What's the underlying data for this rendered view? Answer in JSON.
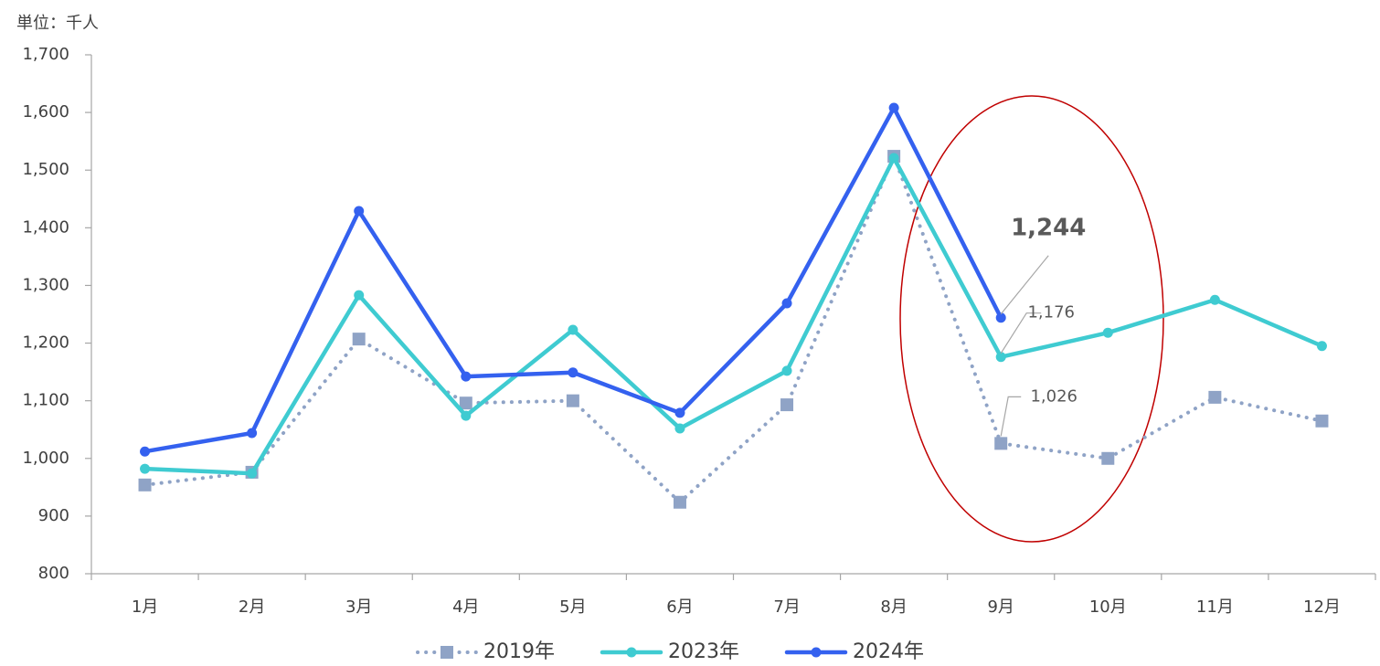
{
  "chart_data": {
    "type": "line",
    "y_axis_label": "単位：千人",
    "categories": [
      "1月",
      "2月",
      "3月",
      "4月",
      "5月",
      "6月",
      "7月",
      "8月",
      "9月",
      "10月",
      "11月",
      "12月"
    ],
    "series": [
      {
        "name": "2019年",
        "color": "#8fa3c6",
        "line_style": "dotted",
        "marker": "square",
        "values": [
          954,
          976,
          1207,
          1096,
          1100,
          924,
          1093,
          1524,
          1026,
          1000,
          1106,
          1065
        ],
        "value_labels": [
          null,
          null,
          null,
          null,
          null,
          null,
          null,
          null,
          "1,026",
          null,
          null,
          null
        ]
      },
      {
        "name": "2023年",
        "color": "#3fcbd1",
        "line_style": "solid",
        "marker": "circle",
        "values": [
          982,
          974,
          1283,
          1074,
          1223,
          1052,
          1152,
          1521,
          1176,
          1218,
          1275,
          1195
        ],
        "value_labels": [
          null,
          null,
          null,
          null,
          null,
          null,
          null,
          null,
          "1,176",
          null,
          null,
          null
        ]
      },
      {
        "name": "2024年",
        "color": "#3461ef",
        "line_style": "solid",
        "marker": "circle",
        "values": [
          1012,
          1044,
          1429,
          1142,
          1149,
          1079,
          1269,
          1608,
          1244,
          null,
          null,
          null
        ],
        "value_labels": [
          null,
          null,
          null,
          null,
          null,
          null,
          null,
          null,
          "1,244",
          null,
          null,
          null
        ]
      }
    ],
    "ylim": [
      800,
      1700
    ],
    "yticks": [
      800,
      900,
      {
        "value": 1000,
        "label": "1,000"
      },
      {
        "value": 1100,
        "label": "1,100"
      },
      {
        "value": 1200,
        "label": "1,200"
      },
      {
        "value": 1300,
        "label": "1,300"
      },
      {
        "value": 1400,
        "label": "1,400"
      },
      {
        "value": 1500,
        "label": "1,500"
      },
      {
        "value": 1600,
        "label": "1,600"
      },
      {
        "value": 1700,
        "label": "1,700"
      }
    ],
    "grid": false,
    "legend": "bottom"
  }
}
